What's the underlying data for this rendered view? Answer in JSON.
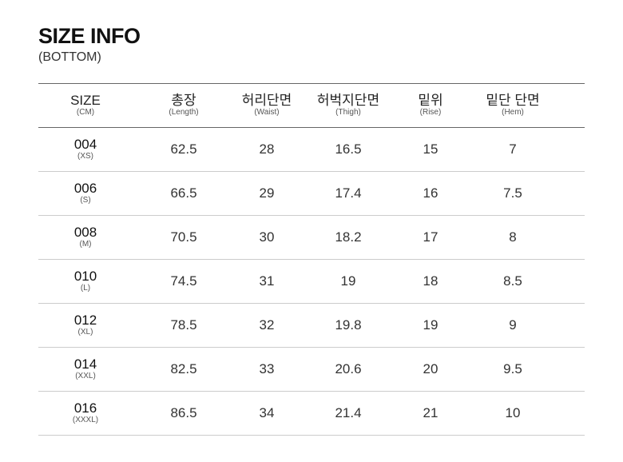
{
  "title": "SIZE INFO",
  "subtitle": "(BOTTOM)",
  "headers": [
    {
      "label": "SIZE",
      "sub": "(CM)"
    },
    {
      "label": "총장",
      "sub": "(Length)"
    },
    {
      "label": "허리단면",
      "sub": "(Waist)"
    },
    {
      "label": "허벅지단면",
      "sub": "(Thigh)"
    },
    {
      "label": "밑위",
      "sub": "(Rise)"
    },
    {
      "label": "밑단 단면",
      "sub": "(Hem)"
    }
  ],
  "rows": [
    {
      "size": "004",
      "alias": "(XS)",
      "values": [
        "62.5",
        "28",
        "16.5",
        "15",
        "7"
      ]
    },
    {
      "size": "006",
      "alias": "(S)",
      "values": [
        "66.5",
        "29",
        "17.4",
        "16",
        "7.5"
      ]
    },
    {
      "size": "008",
      "alias": "(M)",
      "values": [
        "70.5",
        "30",
        "18.2",
        "17",
        "8"
      ]
    },
    {
      "size": "010",
      "alias": "(L)",
      "values": [
        "74.5",
        "31",
        "19",
        "18",
        "8.5"
      ]
    },
    {
      "size": "012",
      "alias": "(XL)",
      "values": [
        "78.5",
        "32",
        "19.8",
        "19",
        "9"
      ]
    },
    {
      "size": "014",
      "alias": "(XXL)",
      "values": [
        "82.5",
        "33",
        "20.6",
        "20",
        "9.5"
      ]
    },
    {
      "size": "016",
      "alias": "(XXXL)",
      "values": [
        "86.5",
        "34",
        "21.4",
        "21",
        "10"
      ]
    }
  ]
}
